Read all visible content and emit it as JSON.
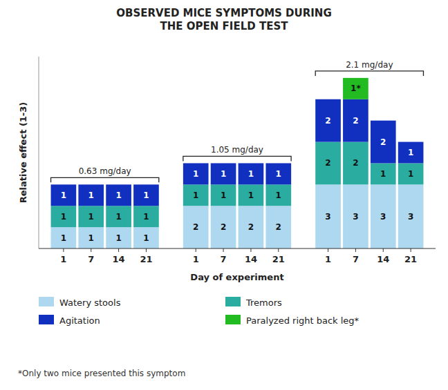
{
  "chart_data": {
    "type": "bar",
    "stacked": true,
    "data_labels": true,
    "grid": false,
    "legend": "bottom",
    "tick_labels": "x",
    "title": "OBSERVED MICE SYMPTOMS DURING\nTHE OPEN FIELD TEST",
    "x_label": "Day of experiment",
    "y_label": "Relative effect (1-3)",
    "categories": [
      "1",
      "7",
      "14",
      "21",
      "1",
      "7",
      "14",
      "21",
      "1",
      "7",
      "14",
      "21"
    ],
    "annotations": [
      "0.63 mg/day",
      "1.05 mg/day",
      "2.1 mg/day"
    ],
    "footnote": "*Only two mice presented this symptom",
    "ylim": [
      0,
      9
    ],
    "series": [
      {
        "name": "Watery stools",
        "color": "#add8f0",
        "values": [
          1,
          1,
          1,
          1,
          2,
          2,
          2,
          2,
          3,
          3,
          3,
          3
        ]
      },
      {
        "name": "Tremors",
        "color": "#2aada0",
        "values": [
          1,
          1,
          1,
          1,
          1,
          1,
          1,
          1,
          2,
          2,
          1,
          1
        ]
      },
      {
        "name": "Agitation",
        "color": "#1230c0",
        "values": [
          1,
          1,
          1,
          1,
          1,
          1,
          1,
          1,
          2,
          2,
          2,
          1
        ]
      },
      {
        "name": "Paralyzed right back leg*",
        "color": "#22bb22",
        "values": [
          0,
          0,
          0,
          0,
          0,
          0,
          0,
          0,
          0,
          1,
          0,
          0
        ],
        "value_labels": [
          null,
          null,
          null,
          null,
          null,
          null,
          null,
          null,
          null,
          "1*",
          null,
          null
        ]
      }
    ]
  }
}
